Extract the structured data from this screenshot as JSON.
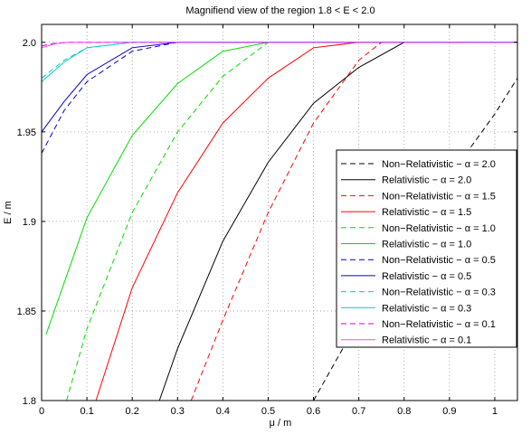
{
  "chart_data": {
    "type": "line",
    "title": "Magnifiend view of the region 1.8 < E < 2.0",
    "xlabel": "μ / m",
    "ylabel": "E / m",
    "xlim": [
      0,
      1.05
    ],
    "ylim": [
      1.8,
      2.01
    ],
    "xticks": [
      0,
      0.1,
      0.2,
      0.3,
      0.4,
      0.5,
      0.6,
      0.7,
      0.8,
      0.9,
      1.0
    ],
    "xtick_labels": [
      "0",
      "0.1",
      "0.2",
      "0.3",
      "0.4",
      "0.5",
      "0.6",
      "0.7",
      "0.8",
      "0.9",
      "1"
    ],
    "yticks": [
      1.8,
      1.85,
      1.9,
      1.95,
      2.0
    ],
    "ytick_labels": [
      "1.8",
      "1.85",
      "1.9",
      "1.95",
      "2.0"
    ],
    "grid": true,
    "legend_position": "right",
    "series": [
      {
        "name": "Non−Relativistic − α = 2.0",
        "color": "#000000",
        "dash": true,
        "x": [
          0.6,
          0.7,
          0.8,
          0.9,
          1.0,
          1.05
        ],
        "y": [
          1.8,
          1.845,
          1.885,
          1.925,
          1.96,
          1.98
        ]
      },
      {
        "name": "Relativistic − α = 2.0",
        "color": "#000000",
        "dash": false,
        "x": [
          0.26,
          0.3,
          0.4,
          0.5,
          0.6,
          0.7,
          0.8,
          1.05
        ],
        "y": [
          1.8,
          1.829,
          1.889,
          1.933,
          1.966,
          1.986,
          2.0,
          2.0
        ]
      },
      {
        "name": "Non−Relativistic − α = 1.5",
        "color": "#ff0000",
        "dash": true,
        "x": [
          0.33,
          0.4,
          0.5,
          0.6,
          0.7,
          0.75,
          1.05
        ],
        "y": [
          1.8,
          1.845,
          1.905,
          1.955,
          1.99,
          2.0,
          2.0
        ]
      },
      {
        "name": "Relativistic − α = 1.5",
        "color": "#ff0000",
        "dash": false,
        "x": [
          0.12,
          0.2,
          0.3,
          0.4,
          0.5,
          0.6,
          0.7,
          1.05
        ],
        "y": [
          1.8,
          1.863,
          1.916,
          1.955,
          1.98,
          1.997,
          2.0,
          2.0
        ]
      },
      {
        "name": "Non−Relativistic − α = 1.0",
        "color": "#00dd00",
        "dash": true,
        "x": [
          0.055,
          0.1,
          0.2,
          0.3,
          0.4,
          0.5,
          1.05
        ],
        "y": [
          1.8,
          1.84,
          1.905,
          1.95,
          1.981,
          2.0,
          2.0
        ]
      },
      {
        "name": "Relativistic − α = 1.0",
        "color": "#00dd00",
        "dash": false,
        "x": [
          0.01,
          0.1,
          0.2,
          0.3,
          0.4,
          0.5,
          1.05
        ],
        "y": [
          1.837,
          1.902,
          1.948,
          1.977,
          1.995,
          2.0,
          2.0
        ]
      },
      {
        "name": "Non−Relativistic − α = 0.5",
        "color": "#0000cc",
        "dash": true,
        "x": [
          0.0,
          0.05,
          0.1,
          0.2,
          0.3,
          1.05
        ],
        "y": [
          1.938,
          1.962,
          1.978,
          1.995,
          2.0,
          2.0
        ]
      },
      {
        "name": "Relativistic − α = 0.5",
        "color": "#0000cc",
        "dash": false,
        "x": [
          0.0,
          0.05,
          0.1,
          0.2,
          0.3,
          1.05
        ],
        "y": [
          1.95,
          1.967,
          1.982,
          1.997,
          2.0,
          2.0
        ]
      },
      {
        "name": "Non−Relativistic − α = 0.3",
        "color": "#00cccc",
        "dash": true,
        "x": [
          0.0,
          0.05,
          0.1,
          0.2,
          1.05
        ],
        "y": [
          1.98,
          1.99,
          1.997,
          2.0,
          2.0
        ]
      },
      {
        "name": "Relativistic − α = 0.3",
        "color": "#00cccc",
        "dash": false,
        "x": [
          0.0,
          0.05,
          0.1,
          0.2,
          1.05
        ],
        "y": [
          1.978,
          1.989,
          1.997,
          2.0,
          2.0
        ]
      },
      {
        "name": "Non−Relativistic − α = 0.1",
        "color": "#cc00cc",
        "dash": true,
        "x": [
          0.0,
          0.03,
          0.06,
          1.05
        ],
        "y": [
          1.998,
          1.9995,
          2.0,
          2.0
        ]
      },
      {
        "name": "Relativistic − α = 0.1",
        "color": "#ff44ff",
        "dash": false,
        "x": [
          0.0,
          0.03,
          0.06,
          1.05
        ],
        "y": [
          1.997,
          1.9992,
          2.0,
          2.0
        ]
      }
    ]
  }
}
